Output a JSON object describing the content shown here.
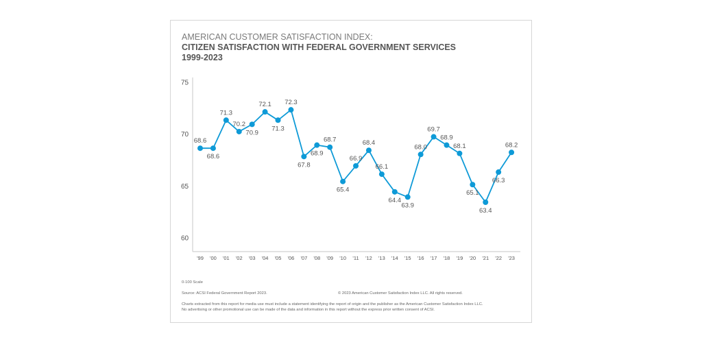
{
  "header": {
    "supertitle": "AMERICAN CUSTOMER SATISFACTION INDEX:",
    "title": "CITIZEN SATISFACTION WITH FEDERAL GOVERNMENT SERVICES",
    "years": "1999-2023"
  },
  "footer": {
    "scale_note": "0-100 Scale",
    "source": "Source: ACSI Federal Government Report 2023.",
    "copyright": "© 2023 American Customer Satisfaction Index LLC. All rights reserved.",
    "disclaimer_1": "Charts extracted from this report for media use must include a statement identifying the report of origin and the publisher as the American Customer Satisfaction Index LLC.",
    "disclaimer_2": "No advertising or other promotional use can be made of the data and information in this report without the express prior written consent of ACSI."
  },
  "colors": {
    "series": "#0E9AD7",
    "axis": "#d0d0d0",
    "text": "#555555"
  },
  "chart_data": {
    "type": "line",
    "title": "Citizen Satisfaction with Federal Government Services 1999-2023",
    "xlabel": "",
    "ylabel": "",
    "ylim": [
      59,
      75.5
    ],
    "yticks": [
      60,
      65,
      70,
      75
    ],
    "grid": false,
    "categories": [
      "'99",
      "'00",
      "'01",
      "'02",
      "'03",
      "'04",
      "'05",
      "'06",
      "'07",
      "'08",
      "'09",
      "'10",
      "'11",
      "'12",
      "'13",
      "'14",
      "'15",
      "'16",
      "'17",
      "'18",
      "'19",
      "'20",
      "'21",
      "'22",
      "'23"
    ],
    "series": [
      {
        "name": "ACSI Federal Government",
        "values": [
          68.6,
          68.6,
          71.3,
          70.2,
          70.9,
          72.1,
          71.3,
          72.3,
          67.8,
          68.9,
          68.7,
          65.4,
          66.9,
          68.4,
          66.1,
          64.4,
          63.9,
          68.0,
          69.7,
          68.9,
          68.1,
          65.1,
          63.4,
          66.3,
          68.2
        ],
        "labels": [
          "68.6",
          "68.6",
          "71.3",
          "70.2",
          "70.9",
          "72.1",
          "71.3",
          "72.3",
          "67.8",
          "68.9",
          "68.7",
          "65.4",
          "66.9",
          "68.4",
          "66.1",
          "64.4",
          "63.9",
          "68.0",
          "69.7",
          "68.9",
          "68.1",
          "65.1",
          "63.4",
          "66.3",
          "68.2"
        ],
        "label_positions": [
          "above",
          "below",
          "above",
          "above",
          "below",
          "above",
          "below",
          "above",
          "below",
          "below",
          "above",
          "below",
          "above",
          "above",
          "above",
          "below",
          "below",
          "above",
          "above",
          "above",
          "above",
          "below",
          "below",
          "below",
          "above"
        ]
      }
    ]
  }
}
